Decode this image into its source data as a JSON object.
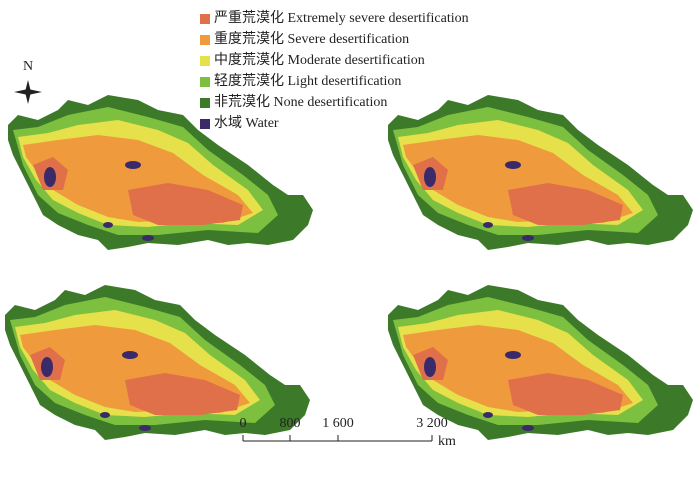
{
  "legend": [
    {
      "label": "严重荒漠化 Extremely severe desertification",
      "color": "#e0704a"
    },
    {
      "label": "重度荒漠化 Severe desertification",
      "color": "#f09a3e"
    },
    {
      "label": "中度荒漠化 Moderate desertification",
      "color": "#e6e04a"
    },
    {
      "label": "轻度荒漠化 Light desertification",
      "color": "#7dbf3e"
    },
    {
      "label": "非荒漠化 None desertification",
      "color": "#3c7a2a"
    },
    {
      "label": "水域 Water",
      "color": "#3a2a6a"
    }
  ],
  "north": "N",
  "scale_bar": {
    "labels": [
      "0",
      "800",
      "1 600",
      "3 200"
    ],
    "unit": "km"
  }
}
